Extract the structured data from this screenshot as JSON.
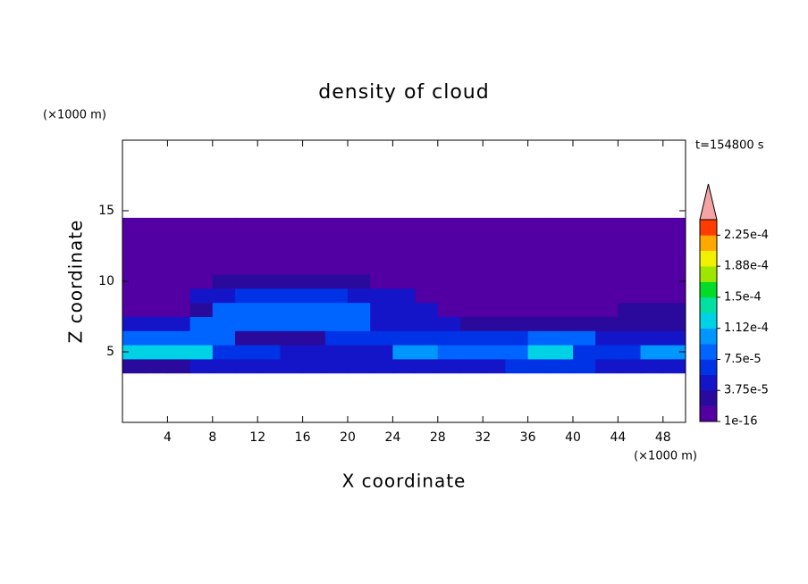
{
  "chart_data": {
    "type": "contour",
    "title": "density of cloud",
    "x_label": "X coordinate",
    "y_label": "Z coordinate",
    "x_unit": "(×1000 m)",
    "y_unit": "(×1000 m)",
    "time_label": "t=154800 s",
    "xlim": [
      0,
      50
    ],
    "xticks": [
      4,
      8,
      12,
      16,
      20,
      24,
      28,
      32,
      36,
      40,
      44,
      48
    ],
    "ylim": [
      0,
      20
    ],
    "yticks": [
      5,
      10,
      15
    ],
    "field": {
      "x": [
        1,
        3,
        5,
        7,
        9,
        11,
        13,
        15,
        17,
        19,
        21,
        23,
        25,
        27,
        29,
        31,
        33,
        35,
        37,
        39,
        41,
        43,
        45,
        47,
        49
      ],
      "z": [
        4,
        5,
        6,
        7,
        8,
        9,
        10,
        11,
        12,
        13,
        14
      ],
      "values": [
        [
          3e-05,
          3e-05,
          3e-05,
          4e-05,
          4e-05,
          4e-05,
          4e-05,
          4e-05,
          4e-05,
          4e-05,
          4e-05,
          5e-05,
          5e-05,
          5e-05,
          5e-05,
          5e-05,
          5e-05,
          6e-05,
          6e-05,
          6e-05,
          6e-05,
          4e-05,
          4e-05,
          4e-05,
          4e-05
        ],
        [
          0.00012,
          0.00012,
          0.00012,
          0.00012,
          6e-05,
          6e-05,
          6e-05,
          4e-05,
          4e-05,
          4e-05,
          4e-05,
          4e-05,
          0.00011,
          0.00011,
          8e-05,
          8e-05,
          8e-05,
          8e-05,
          0.00013,
          0.00013,
          7e-05,
          7e-05,
          7e-05,
          0.00011,
          0.00011
        ],
        [
          9e-05,
          9e-05,
          9e-05,
          9e-05,
          9e-05,
          3e-05,
          3e-05,
          3e-05,
          3e-05,
          6e-05,
          6e-05,
          6e-05,
          6e-05,
          7e-05,
          7e-05,
          7e-05,
          7e-05,
          7e-05,
          9e-05,
          9e-05,
          9e-05,
          5e-05,
          5e-05,
          5e-05,
          5e-05
        ],
        [
          5e-05,
          5e-05,
          5e-05,
          8e-05,
          8e-05,
          8e-05,
          8e-05,
          8e-05,
          8e-05,
          8e-05,
          8e-05,
          4e-05,
          4e-05,
          4e-05,
          4e-05,
          3e-05,
          3e-05,
          3e-05,
          2e-05,
          2e-05,
          2e-05,
          2e-05,
          2e-05,
          2e-05,
          2e-05
        ],
        [
          1e-16,
          1e-16,
          1e-16,
          3e-05,
          8e-05,
          8e-05,
          8e-05,
          8e-05,
          8e-05,
          8e-05,
          8e-05,
          5e-05,
          5e-05,
          5e-05,
          1e-16,
          1e-16,
          1e-16,
          1e-16,
          1e-16,
          1e-16,
          1e-16,
          1e-16,
          2e-05,
          2e-05,
          2e-05
        ],
        [
          1e-16,
          1e-16,
          1e-16,
          4e-05,
          4e-05,
          6e-05,
          6e-05,
          6e-05,
          6e-05,
          6e-05,
          4e-05,
          4e-05,
          4e-05,
          1e-16,
          1e-16,
          1e-16,
          1e-16,
          1e-16,
          1e-16,
          1e-16,
          1e-16,
          1e-16,
          1e-16,
          1e-16,
          1e-16
        ],
        [
          1e-16,
          1e-16,
          1e-16,
          1e-16,
          2e-05,
          2e-05,
          2e-05,
          2e-05,
          2e-05,
          2e-05,
          2e-05,
          1e-16,
          1e-16,
          1e-16,
          1e-16,
          1e-16,
          1e-16,
          1e-16,
          1e-16,
          1e-16,
          1e-16,
          1e-16,
          1e-16,
          1e-16,
          1e-16
        ],
        [
          1e-16,
          1e-16,
          1e-16,
          1e-16,
          1e-16,
          1e-16,
          1e-16,
          1e-16,
          1e-16,
          1e-16,
          1e-16,
          1e-16,
          1e-16,
          1e-16,
          1e-16,
          1e-16,
          1e-16,
          1e-16,
          1e-16,
          1e-16,
          1e-16,
          1e-16,
          1e-16,
          1e-16,
          1e-16
        ],
        [
          1e-16,
          1e-16,
          1e-16,
          1e-16,
          1e-16,
          1e-16,
          1e-16,
          1e-16,
          1e-16,
          1e-16,
          1e-16,
          1e-16,
          1e-16,
          1e-16,
          1e-16,
          1e-16,
          1e-16,
          1e-16,
          1e-16,
          1e-16,
          1e-16,
          1e-16,
          1e-16,
          1e-16,
          1e-16
        ],
        [
          1e-16,
          1e-16,
          1e-16,
          1e-16,
          1e-16,
          1e-16,
          1e-16,
          1e-16,
          1e-16,
          1e-16,
          1e-16,
          1e-16,
          1e-16,
          1e-16,
          1e-16,
          1e-16,
          1e-16,
          1e-16,
          1e-16,
          1e-16,
          1e-16,
          1e-16,
          1e-16,
          1e-16,
          1e-16
        ],
        [
          1e-16,
          1e-16,
          1e-16,
          1e-16,
          1e-16,
          1e-16,
          1e-16,
          1e-16,
          1e-16,
          1e-16,
          1e-16,
          1e-16,
          1e-16,
          1e-16,
          1e-16,
          1e-16,
          1e-16,
          1e-16,
          1e-16,
          1e-16,
          1e-16,
          1e-16,
          1e-16,
          1e-16,
          1e-16
        ]
      ]
    },
    "colorbar": {
      "clim": [
        1e-16,
        0.00024375
      ],
      "ticks": [
        {
          "value": 1e-16,
          "label": "1e-16"
        },
        {
          "value": 3.75e-05,
          "label": "3.75e-5"
        },
        {
          "value": 7.5e-05,
          "label": "7.5e-5"
        },
        {
          "value": 0.0001125,
          "label": "1.12e-4"
        },
        {
          "value": 0.00015,
          "label": "1.5e-4"
        },
        {
          "value": 0.0001875,
          "label": "1.88e-4"
        },
        {
          "value": 0.000225,
          "label": "2.25e-4"
        }
      ],
      "colors": [
        "#5200a3",
        "#2a0a9c",
        "#1414c8",
        "#0032e6",
        "#0064ff",
        "#0096ff",
        "#00d2e6",
        "#00e0a0",
        "#00dc28",
        "#9ee600",
        "#f0f000",
        "#ffa800",
        "#ff3c00"
      ],
      "extend_color": "#f4a4a4"
    }
  }
}
